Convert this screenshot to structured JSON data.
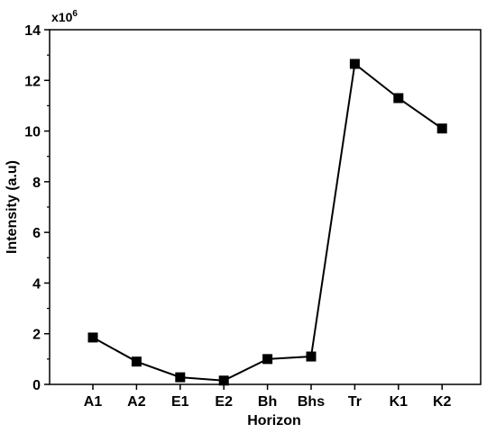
{
  "chart_data": {
    "type": "line",
    "categories": [
      "A1",
      "A2",
      "E1",
      "E2",
      "Bh",
      "Bhs",
      "Tr",
      "K1",
      "K2"
    ],
    "values": [
      1.85,
      0.9,
      0.28,
      0.15,
      1.0,
      1.1,
      12.65,
      11.3,
      10.1
    ],
    "xlabel": "Horizon",
    "ylabel": "Intensity (a.u)",
    "ylim": [
      0,
      14
    ],
    "yticks": [
      "0",
      "2",
      "4",
      "6",
      "8",
      "10",
      "12",
      "14"
    ],
    "multiplier_base": "x10",
    "multiplier_exp": "6",
    "marker": "square",
    "grid": false,
    "legend": "none",
    "line_color": "#000000"
  }
}
